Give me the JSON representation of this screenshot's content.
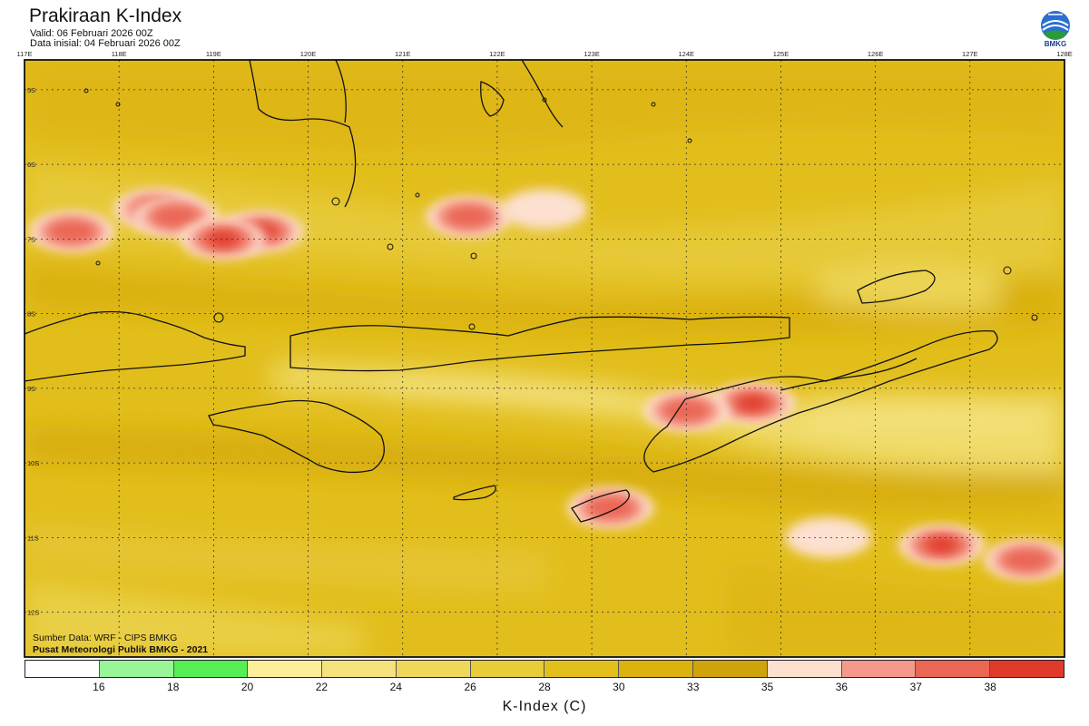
{
  "header": {
    "title": "Prakiraan K-Index",
    "valid": "Valid: 06 Februari 2026 00Z",
    "init": "Data inisial: 04 Februari 2026 00Z"
  },
  "logo": {
    "text": "BMKG"
  },
  "axes": {
    "lon_labels": [
      "117E",
      "118E",
      "119E",
      "120E",
      "121E",
      "122E",
      "123E",
      "124E",
      "125E",
      "126E",
      "127E",
      "128E"
    ],
    "lat_labels": [
      "5S",
      "6S",
      "7S",
      "8S",
      "9S",
      "10S",
      "11S",
      "12S"
    ],
    "lon_range": [
      117,
      128
    ],
    "lat_range": [
      -4.6,
      -12.6
    ]
  },
  "credits": {
    "source": "Sumber Data: WRF - CIPS BMKG",
    "center": "Pusat Meteorologi Publik BMKG - 2021"
  },
  "legend": {
    "title": "K-Index (C)",
    "labels": [
      "16",
      "18",
      "20",
      "22",
      "24",
      "26",
      "28",
      "30",
      "33",
      "35",
      "36",
      "37",
      "38"
    ],
    "colors": [
      "#ffffff",
      "#98f598",
      "#55ee55",
      "#fbef9a",
      "#f6e27c",
      "#eed85b",
      "#e8cc3a",
      "#e3bf1b",
      "#dcb20e",
      "#cfa30c",
      "#fde0d0",
      "#f59a8a",
      "#ea6655",
      "#e03a2a"
    ]
  },
  "hotspots": [
    {
      "name": "sea-w",
      "lon": 118.4,
      "lat": -6.6,
      "level": 38
    },
    {
      "name": "sea-w2",
      "lon": 118.6,
      "lat": -6.7,
      "level": 37
    },
    {
      "name": "sea-w3",
      "lon": 119.5,
      "lat": -6.9,
      "level": 38
    },
    {
      "name": "sea-w4",
      "lon": 119.1,
      "lat": -7.0,
      "level": 38
    },
    {
      "name": "sea-w5",
      "lon": 117.5,
      "lat": -6.9,
      "level": 37
    },
    {
      "name": "sea-mid",
      "lon": 121.7,
      "lat": -6.7,
      "level": 37
    },
    {
      "name": "sea-mid2",
      "lon": 122.5,
      "lat": -6.6,
      "level": 36
    },
    {
      "name": "timor-n",
      "lon": 124.7,
      "lat": -9.2,
      "level": 38
    },
    {
      "name": "timor-w",
      "lon": 124.0,
      "lat": -9.3,
      "level": 37
    },
    {
      "name": "rote",
      "lon": 123.2,
      "lat": -10.6,
      "level": 37
    },
    {
      "name": "sea-se",
      "lon": 126.7,
      "lat": -11.1,
      "level": 38
    },
    {
      "name": "sea-se2",
      "lon": 127.6,
      "lat": -11.3,
      "level": 37
    },
    {
      "name": "sea-se3",
      "lon": 125.5,
      "lat": -11.0,
      "level": 36
    }
  ]
}
